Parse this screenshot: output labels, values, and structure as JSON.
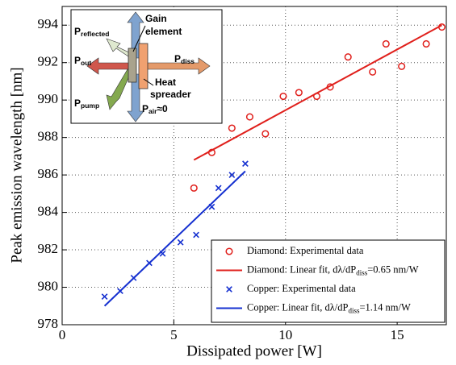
{
  "chart_data": {
    "type": "scatter",
    "xlabel": "Dissipated power  [W]",
    "ylabel": "Peak emission wavelength  [nm]",
    "xlim": [
      0,
      17.2
    ],
    "ylim": [
      978,
      995
    ],
    "xticks": [
      0,
      5,
      10,
      15
    ],
    "yticks": [
      978,
      980,
      982,
      984,
      986,
      988,
      990,
      992,
      994
    ],
    "grid": true,
    "legend": "lower right",
    "series": [
      {
        "name": "Diamond: Experimental data",
        "mode": "markers",
        "marker": "circle",
        "color": "#e0201c",
        "x": [
          5.9,
          6.7,
          7.6,
          8.4,
          9.1,
          9.9,
          10.6,
          11.4,
          12.0,
          12.8,
          13.9,
          14.5,
          15.2,
          16.3,
          17.0
        ],
        "values": [
          985.3,
          987.2,
          988.5,
          989.1,
          988.2,
          990.2,
          990.4,
          990.2,
          990.7,
          992.3,
          991.5,
          993.0,
          991.8,
          993.0,
          993.9
        ]
      },
      {
        "name": "Diamond: Linear fit, dλ/dP",
        "name_subscript": "diss",
        "name_suffix": "=0.65 nm/W",
        "mode": "line",
        "color": "#e0201c",
        "x": [
          5.9,
          17.0
        ],
        "values": [
          986.8,
          994.0
        ]
      },
      {
        "name": "Copper: Experimental data",
        "mode": "markers",
        "marker": "x",
        "color": "#1530d0",
        "x": [
          1.9,
          2.6,
          3.2,
          3.9,
          4.5,
          5.3,
          6.0,
          6.7,
          7.0,
          7.6,
          8.2
        ],
        "values": [
          979.5,
          979.8,
          980.5,
          981.3,
          981.8,
          982.4,
          982.8,
          984.3,
          985.3,
          986.0,
          986.6
        ]
      },
      {
        "name": "Copper: Linear fit, dλ/dP",
        "name_subscript": "diss",
        "name_suffix": "=1.14 nm/W",
        "mode": "line",
        "color": "#1530d0",
        "x": [
          1.9,
          8.2
        ],
        "values": [
          979.0,
          986.2
        ]
      }
    ],
    "inset": {
      "reflected": {
        "main": "P",
        "sub": "reflected"
      },
      "out": {
        "main": "P",
        "sub": "out"
      },
      "pump": {
        "main": "P",
        "sub": "pump"
      },
      "diss": {
        "main": "P",
        "sub": "diss"
      },
      "air": {
        "main": "P",
        "sub": "air",
        "suffix": "≈0"
      },
      "gain": [
        "Gain",
        "element"
      ],
      "spreader": [
        "Heat",
        "spreader"
      ]
    }
  }
}
